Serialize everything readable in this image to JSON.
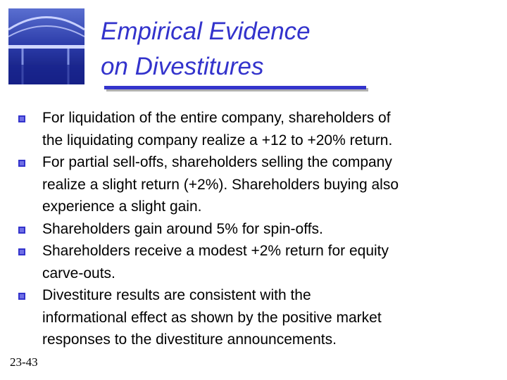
{
  "title": {
    "lines": [
      "Empirical Evidence",
      "on Divestitures"
    ]
  },
  "bullets": [
    {
      "lines": [
        "For liquidation of the entire company, shareholders of",
        "the liquidating company realize a +12 to +20% return."
      ]
    },
    {
      "lines": [
        "For partial sell-offs, shareholders selling the company",
        "realize a slight return (+2%).  Shareholders buying also",
        "experience a slight gain."
      ]
    },
    {
      "lines": [
        "Shareholders gain around 5% for spin-offs."
      ]
    },
    {
      "lines": [
        "Shareholders receive a modest +2% return for equity",
        "carve-outs."
      ]
    },
    {
      "lines": [
        "Divestiture results are consistent with the",
        "informational effect as shown by the positive market",
        "responses to the divestiture announcements."
      ]
    }
  ],
  "slide_number": "23-43"
}
